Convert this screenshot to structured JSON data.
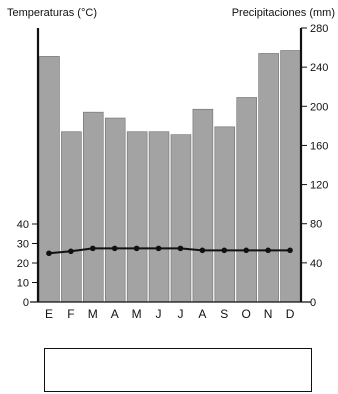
{
  "chart_data": {
    "type": "bar",
    "title": "",
    "categories": [
      "E",
      "F",
      "M",
      "A",
      "M",
      "J",
      "J",
      "A",
      "S",
      "O",
      "N",
      "D"
    ],
    "series": [
      {
        "type": "bar",
        "axis": "right",
        "values": [
          251,
          174,
          194,
          188,
          174,
          174,
          171,
          197,
          179,
          209,
          254,
          257
        ]
      },
      {
        "type": "line",
        "axis": "left",
        "values": [
          25,
          26,
          27.5,
          27.5,
          27.5,
          27.5,
          27.5,
          26.5,
          26.5,
          26.5,
          26.5,
          26.5
        ]
      }
    ],
    "left_axis": {
      "label": "Temperaturas (°C)",
      "ylim": [
        0,
        40
      ],
      "ticks": [
        "0",
        "10",
        "20",
        "30",
        "40"
      ]
    },
    "right_axis": {
      "label": "Precipitaciones (mm)",
      "ylim": [
        0,
        280
      ],
      "ticks": [
        "0",
        "40",
        "80",
        "120",
        "160",
        "200",
        "240",
        "280"
      ]
    },
    "grid": false,
    "legend": "none",
    "colors": {
      "bar_fill": "#a3a3a3",
      "bar_stroke": "#ffffff",
      "line": "#111111",
      "axis": "#111111"
    }
  }
}
